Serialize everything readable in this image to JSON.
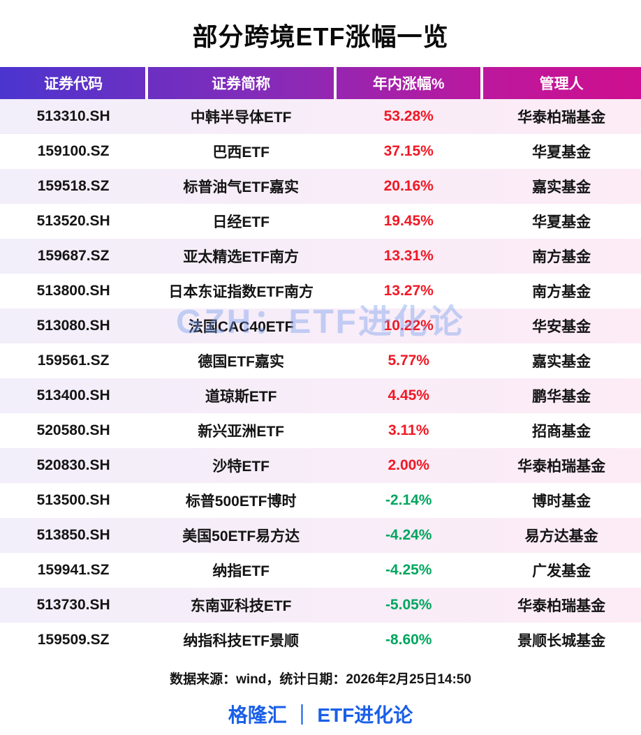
{
  "chart_data": {
    "type": "table",
    "title": "部分跨境ETF涨幅一览",
    "columns": [
      "证券代码",
      "证券简称",
      "年内涨幅%",
      "管理人"
    ],
    "rows": [
      {
        "code": "513310.SH",
        "name": "中韩半导体ETF",
        "change": "53.28%",
        "direction": "up",
        "manager": "华泰柏瑞基金"
      },
      {
        "code": "159100.SZ",
        "name": "巴西ETF",
        "change": "37.15%",
        "direction": "up",
        "manager": "华夏基金"
      },
      {
        "code": "159518.SZ",
        "name": "标普油气ETF嘉实",
        "change": "20.16%",
        "direction": "up",
        "manager": "嘉实基金"
      },
      {
        "code": "513520.SH",
        "name": "日经ETF",
        "change": "19.45%",
        "direction": "up",
        "manager": "华夏基金"
      },
      {
        "code": "159687.SZ",
        "name": "亚太精选ETF南方",
        "change": "13.31%",
        "direction": "up",
        "manager": "南方基金"
      },
      {
        "code": "513800.SH",
        "name": "日本东证指数ETF南方",
        "change": "13.27%",
        "direction": "up",
        "manager": "南方基金"
      },
      {
        "code": "513080.SH",
        "name": "法国CAC40ETF",
        "change": "10.22%",
        "direction": "up",
        "manager": "华安基金"
      },
      {
        "code": "159561.SZ",
        "name": "德国ETF嘉实",
        "change": "5.77%",
        "direction": "up",
        "manager": "嘉实基金"
      },
      {
        "code": "513400.SH",
        "name": "道琼斯ETF",
        "change": "4.45%",
        "direction": "up",
        "manager": "鹏华基金"
      },
      {
        "code": "520580.SH",
        "name": "新兴亚洲ETF",
        "change": "3.11%",
        "direction": "up",
        "manager": "招商基金"
      },
      {
        "code": "520830.SH",
        "name": "沙特ETF",
        "change": "2.00%",
        "direction": "up",
        "manager": "华泰柏瑞基金"
      },
      {
        "code": "513500.SH",
        "name": "标普500ETF博时",
        "change": "-2.14%",
        "direction": "down",
        "manager": "博时基金"
      },
      {
        "code": "513850.SH",
        "name": "美国50ETF易方达",
        "change": "-4.24%",
        "direction": "down",
        "manager": "易方达基金"
      },
      {
        "code": "159941.SZ",
        "name": "纳指ETF",
        "change": "-4.25%",
        "direction": "down",
        "manager": "广发基金"
      },
      {
        "code": "513730.SH",
        "name": "东南亚科技ETF",
        "change": "-5.05%",
        "direction": "down",
        "manager": "华泰柏瑞基金"
      },
      {
        "code": "159509.SZ",
        "name": "纳指科技ETF景顺",
        "change": "-8.60%",
        "direction": "down",
        "manager": "景顺长城基金"
      }
    ]
  },
  "watermark": "GZH：ETF进化论",
  "footer": {
    "source": "数据来源：wind，统计日期：2026年2月25日14:50",
    "brand": "格隆汇 ｜ ETF进化论"
  },
  "colors": {
    "up": "#f01824",
    "down": "#00a65f",
    "header_gradient_from": "#4b35cf",
    "header_gradient_to": "#ce0f8e",
    "brand_blue": "#1a5fe8",
    "odd_row_from": "#f2eefa",
    "odd_row_to": "#fdecf6"
  }
}
